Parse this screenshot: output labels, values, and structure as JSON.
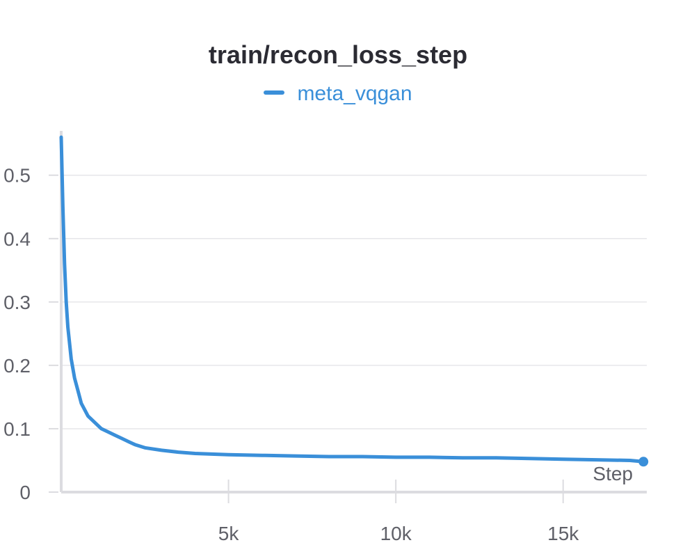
{
  "chart_data": {
    "type": "line",
    "title": "train/recon_loss_step",
    "xlabel": "Step",
    "ylabel": "",
    "xlim": [
      0,
      17500
    ],
    "ylim": [
      0,
      0.57
    ],
    "x_ticks": [
      5000,
      10000,
      15000
    ],
    "x_tick_labels": [
      "5k",
      "10k",
      "15k"
    ],
    "y_ticks": [
      0,
      0.1,
      0.2,
      0.3,
      0.4,
      0.5
    ],
    "y_tick_labels": [
      "0",
      "0.1",
      "0.2",
      "0.3",
      "0.4",
      "0.5"
    ],
    "grid": true,
    "legend_position": "top-center",
    "series": [
      {
        "name": "meta_vqgan",
        "color": "#3a8fd9",
        "x": [
          0,
          50,
          100,
          150,
          200,
          300,
          400,
          500,
          600,
          700,
          800,
          1000,
          1200,
          1400,
          1600,
          1800,
          2000,
          2200,
          2500,
          3000,
          3500,
          4000,
          5000,
          6000,
          7000,
          8000,
          9000,
          10000,
          11000,
          12000,
          13000,
          14000,
          15000,
          16000,
          17000,
          17400
        ],
        "values": [
          0.56,
          0.45,
          0.36,
          0.3,
          0.26,
          0.21,
          0.18,
          0.16,
          0.14,
          0.13,
          0.12,
          0.11,
          0.1,
          0.095,
          0.09,
          0.085,
          0.08,
          0.075,
          0.07,
          0.066,
          0.063,
          0.061,
          0.059,
          0.058,
          0.057,
          0.056,
          0.056,
          0.055,
          0.055,
          0.054,
          0.054,
          0.053,
          0.052,
          0.051,
          0.05,
          0.048
        ]
      }
    ]
  }
}
